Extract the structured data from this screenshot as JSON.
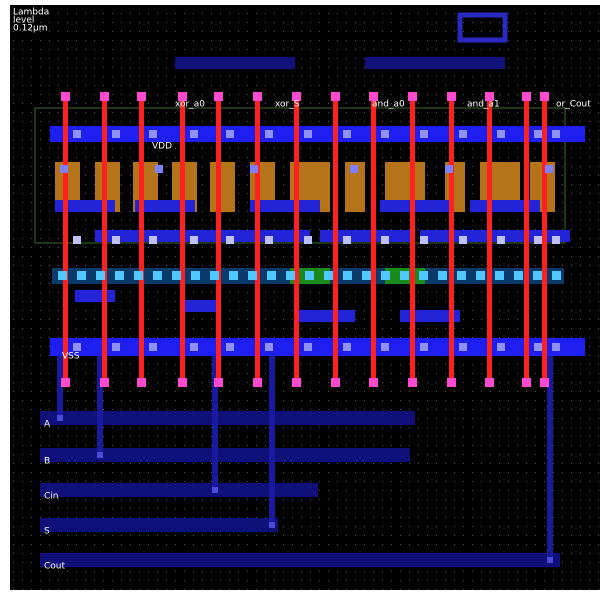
{
  "header": {
    "lines": [
      "Lambda",
      "level",
      "0.12µm"
    ]
  },
  "labels": {
    "vdd": "VDD",
    "vss": "VSS",
    "nodes": [
      "xor_a0",
      "xor_S",
      "and_a0",
      "and_a1",
      "or_Cout"
    ]
  },
  "pins": [
    "A",
    "B",
    "Cin",
    "S",
    "Cout"
  ]
}
